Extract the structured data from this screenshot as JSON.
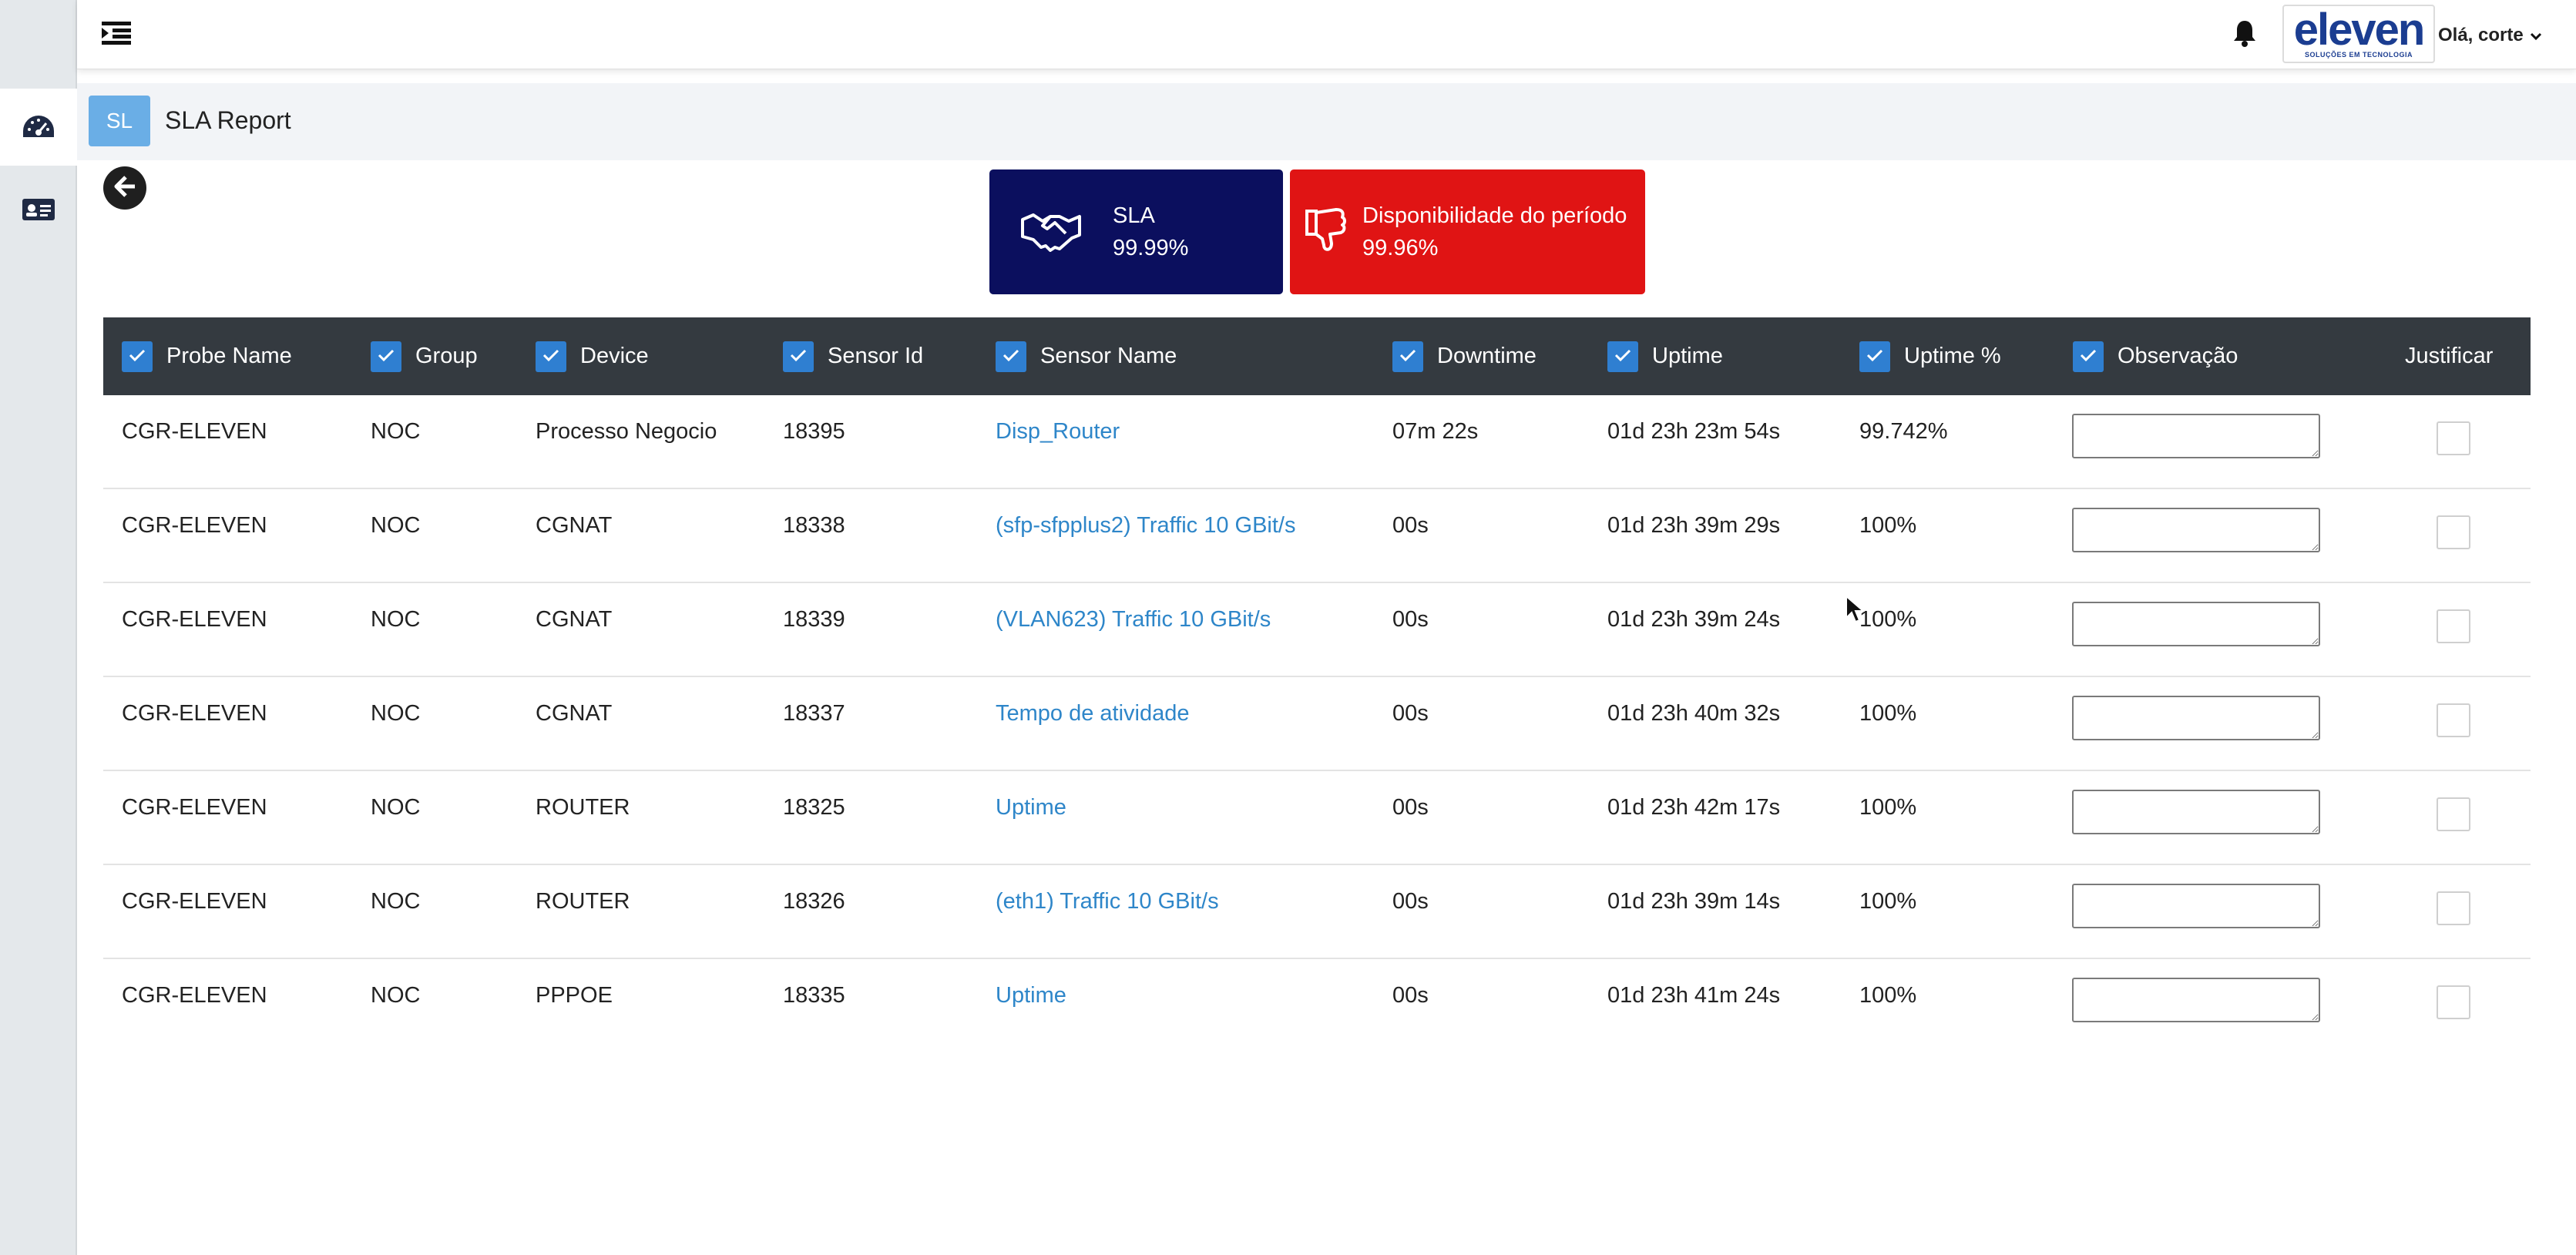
{
  "header": {
    "logo_text": "eleven",
    "logo_subtext": "SOLUÇÕES EM TECNOLOGIA",
    "user_greeting": "Olá, corte"
  },
  "page": {
    "badge": "SL",
    "title": "SLA Report"
  },
  "kpis": {
    "sla": {
      "label": "SLA",
      "value": "99.99%",
      "color": "#0b0f5e"
    },
    "availability": {
      "label": "Disponibilidade do período",
      "value": "99.96%",
      "color": "#e01414"
    }
  },
  "table": {
    "columns": {
      "probe": "Probe Name",
      "group": "Group",
      "device": "Device",
      "sensor_id": "Sensor Id",
      "sensor_name": "Sensor Name",
      "downtime": "Downtime",
      "uptime": "Uptime",
      "uptime_pct": "Uptime %",
      "obs": "Observação",
      "justificar": "Justificar"
    },
    "rows": [
      {
        "probe": "CGR-ELEVEN",
        "group": "NOC",
        "device": "Processo Negocio",
        "sensor_id": "18395",
        "sensor_name": "Disp_Router",
        "downtime": "07m 22s",
        "uptime": "01d 23h 23m 54s",
        "uptime_pct": "99.742%"
      },
      {
        "probe": "CGR-ELEVEN",
        "group": "NOC",
        "device": "CGNAT",
        "sensor_id": "18338",
        "sensor_name": "(sfp-sfpplus2) Traffic 10 GBit/s",
        "downtime": "00s",
        "uptime": "01d 23h 39m 29s",
        "uptime_pct": "100%"
      },
      {
        "probe": "CGR-ELEVEN",
        "group": "NOC",
        "device": "CGNAT",
        "sensor_id": "18339",
        "sensor_name": "(VLAN623) Traffic 10 GBit/s",
        "downtime": "00s",
        "uptime": "01d 23h 39m 24s",
        "uptime_pct": "100%"
      },
      {
        "probe": "CGR-ELEVEN",
        "group": "NOC",
        "device": "CGNAT",
        "sensor_id": "18337",
        "sensor_name": "Tempo de atividade",
        "downtime": "00s",
        "uptime": "01d 23h 40m 32s",
        "uptime_pct": "100%"
      },
      {
        "probe": "CGR-ELEVEN",
        "group": "NOC",
        "device": "ROUTER",
        "sensor_id": "18325",
        "sensor_name": "Uptime",
        "downtime": "00s",
        "uptime": "01d 23h 42m 17s",
        "uptime_pct": "100%"
      },
      {
        "probe": "CGR-ELEVEN",
        "group": "NOC",
        "device": "ROUTER",
        "sensor_id": "18326",
        "sensor_name": "(eth1) Traffic 10 GBit/s",
        "downtime": "00s",
        "uptime": "01d 23h 39m 14s",
        "uptime_pct": "100%"
      },
      {
        "probe": "CGR-ELEVEN",
        "group": "NOC",
        "device": "PPPOE",
        "sensor_id": "18335",
        "sensor_name": "Uptime",
        "downtime": "00s",
        "uptime": "01d 23h 41m 24s",
        "uptime_pct": "100%"
      }
    ]
  },
  "icons": {
    "rail": [
      "dashboard-gauge-icon",
      "id-card-icon"
    ],
    "top": [
      "menu-toggle-icon",
      "bell-icon",
      "chevron-down-icon"
    ],
    "kpi": [
      "handshake-icon",
      "thumbs-down-icon"
    ],
    "back": "arrow-left-circle-icon"
  }
}
